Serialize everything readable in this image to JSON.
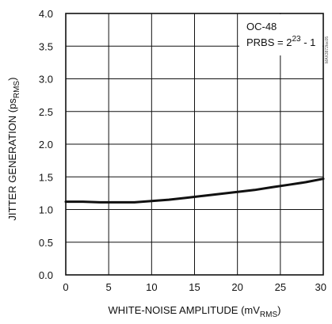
{
  "chart_data": {
    "type": "line",
    "xlabel": {
      "main": "WHITE-NOISE AMPLITUDE (mV",
      "sub": "RMS",
      "end": ")"
    },
    "ylabel": {
      "main": "JITTER GENERATION (ps",
      "sub": "RMS",
      "end": ")"
    },
    "x_ticks": [
      "0",
      "5",
      "10",
      "15",
      "20",
      "25",
      "30"
    ],
    "y_ticks": [
      "0.0",
      "0.5",
      "1.0",
      "1.5",
      "2.0",
      "2.5",
      "3.0",
      "3.5",
      "4.0"
    ],
    "xlim": [
      0,
      30
    ],
    "ylim": [
      0,
      4.0
    ],
    "grid": true,
    "annotation": {
      "line1": "OC-48",
      "line2_prefix": "PRBS = 2",
      "line2_sup": "23",
      "line2_suffix": " - 1"
    },
    "watermark": "MAX3872toc05",
    "series": [
      {
        "x": [
          0,
          2,
          4,
          6,
          8,
          10,
          12,
          14,
          16,
          18,
          20,
          22,
          24,
          26,
          28,
          30
        ],
        "y": [
          1.12,
          1.12,
          1.11,
          1.11,
          1.11,
          1.13,
          1.15,
          1.18,
          1.21,
          1.24,
          1.27,
          1.3,
          1.34,
          1.38,
          1.42,
          1.47
        ]
      }
    ]
  }
}
